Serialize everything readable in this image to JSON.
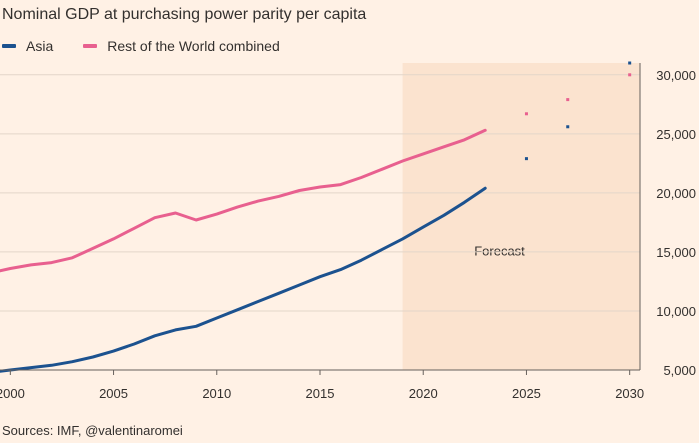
{
  "chart_data": {
    "type": "line",
    "title": "Nominal GDP at purchasing power parity per capita",
    "xlabel": "",
    "ylabel": "",
    "xlim": [
      1999.5,
      2030.5
    ],
    "ylim": [
      5000,
      31000
    ],
    "x_ticks": [
      2000,
      2005,
      2010,
      2015,
      2020,
      2025,
      2030
    ],
    "y_ticks": [
      5000,
      10000,
      15000,
      20000,
      25000,
      30000
    ],
    "x_tick_labels": [
      "2000",
      "2005",
      "2010",
      "2015",
      "2020",
      "2025",
      "2030"
    ],
    "y_tick_labels": [
      "5,000",
      "10,000",
      "15,000",
      "20,000",
      "25,000",
      "30,000"
    ],
    "grid": true,
    "legend_position": "top-left",
    "forecast_region": {
      "from": 2019,
      "to": 2030.5,
      "label": "Forecast",
      "color": "#fbe3cf"
    },
    "series": [
      {
        "name": "Asia",
        "color": "#1c528f",
        "x": [
          1999.5,
          2000,
          2001,
          2002,
          2003,
          2004,
          2005,
          2006,
          2007,
          2008,
          2009,
          2010,
          2011,
          2012,
          2013,
          2014,
          2015,
          2016,
          2017,
          2018,
          2019,
          2020,
          2021,
          2022,
          2023
        ],
        "values": [
          4900,
          5000,
          5200,
          5400,
          5700,
          6100,
          6600,
          7200,
          7900,
          8400,
          8700,
          9400,
          10100,
          10800,
          11500,
          12200,
          12900,
          13500,
          14300,
          15200,
          16100,
          17100,
          18100,
          19200,
          20400
        ],
        "forecast_points": {
          "x": [
            2025,
            2027,
            2030
          ],
          "values": [
            22900,
            25600,
            31000
          ]
        }
      },
      {
        "name": "Rest of the World combined",
        "color": "#e8608f",
        "x": [
          1999.5,
          2000,
          2001,
          2002,
          2003,
          2004,
          2005,
          2006,
          2007,
          2008,
          2009,
          2010,
          2011,
          2012,
          2013,
          2014,
          2015,
          2016,
          2017,
          2018,
          2019,
          2020,
          2021,
          2022,
          2023
        ],
        "values": [
          13400,
          13600,
          13900,
          14100,
          14500,
          15300,
          16100,
          17000,
          17900,
          18300,
          17700,
          18200,
          18800,
          19300,
          19700,
          20200,
          20500,
          20700,
          21300,
          22000,
          22700,
          23300,
          23900,
          24500,
          25300
        ],
        "forecast_points": {
          "x": [
            2025,
            2027,
            2030
          ],
          "values": [
            26700,
            27900,
            30000
          ]
        }
      }
    ]
  },
  "source": "Sources: IMF, @valentinaromei"
}
